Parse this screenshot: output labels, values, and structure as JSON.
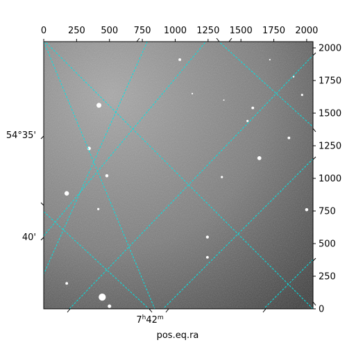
{
  "chart_data": {
    "type": "image",
    "title": "",
    "xlabel": "pos.eq.ra",
    "x_axis": {
      "range": [
        0,
        2048
      ],
      "ticks": [
        0,
        250,
        500,
        750,
        1000,
        1250,
        1500,
        1750,
        2000
      ],
      "position": "top"
    },
    "y_axis": {
      "range": [
        0,
        2048
      ],
      "ticks": [
        0,
        250,
        500,
        750,
        1000,
        1250,
        1500,
        1750,
        2000
      ],
      "position": "right"
    },
    "ra_label": {
      "main": "7",
      "sup1": "h",
      "mid": "42",
      "sup2": "m"
    },
    "dec_labels": [
      "54°35'",
      "40'"
    ],
    "grid": true,
    "grid_color": "#00e5e5",
    "image_colormap": "grayscale",
    "stars": [
      {
        "x": 420,
        "y": 1560,
        "r": 2.2
      },
      {
        "x": 345,
        "y": 1230,
        "r": 1.6
      },
      {
        "x": 480,
        "y": 1020,
        "r": 1.4
      },
      {
        "x": 175,
        "y": 885,
        "r": 2.0
      },
      {
        "x": 415,
        "y": 765,
        "r": 1.0
      },
      {
        "x": 1035,
        "y": 1910,
        "r": 1.2
      },
      {
        "x": 1590,
        "y": 1540,
        "r": 1.2
      },
      {
        "x": 1550,
        "y": 1440,
        "r": 1.0
      },
      {
        "x": 1640,
        "y": 1155,
        "r": 1.8
      },
      {
        "x": 1865,
        "y": 1310,
        "r": 1.2
      },
      {
        "x": 1965,
        "y": 1640,
        "r": 1.0
      },
      {
        "x": 1355,
        "y": 1010,
        "r": 1.0
      },
      {
        "x": 1245,
        "y": 550,
        "r": 1.3
      },
      {
        "x": 1245,
        "y": 395,
        "r": 1.2
      },
      {
        "x": 2000,
        "y": 760,
        "r": 1.4
      },
      {
        "x": 175,
        "y": 195,
        "r": 1.2
      },
      {
        "x": 445,
        "y": 90,
        "r": 3.2
      },
      {
        "x": 500,
        "y": 20,
        "r": 1.6
      },
      {
        "x": 1900,
        "y": 1780,
        "r": 0.8
      },
      {
        "x": 1720,
        "y": 1910,
        "r": 0.7
      },
      {
        "x": 1130,
        "y": 1650,
        "r": 0.7
      },
      {
        "x": 1370,
        "y": 1600,
        "r": 0.6
      }
    ]
  }
}
